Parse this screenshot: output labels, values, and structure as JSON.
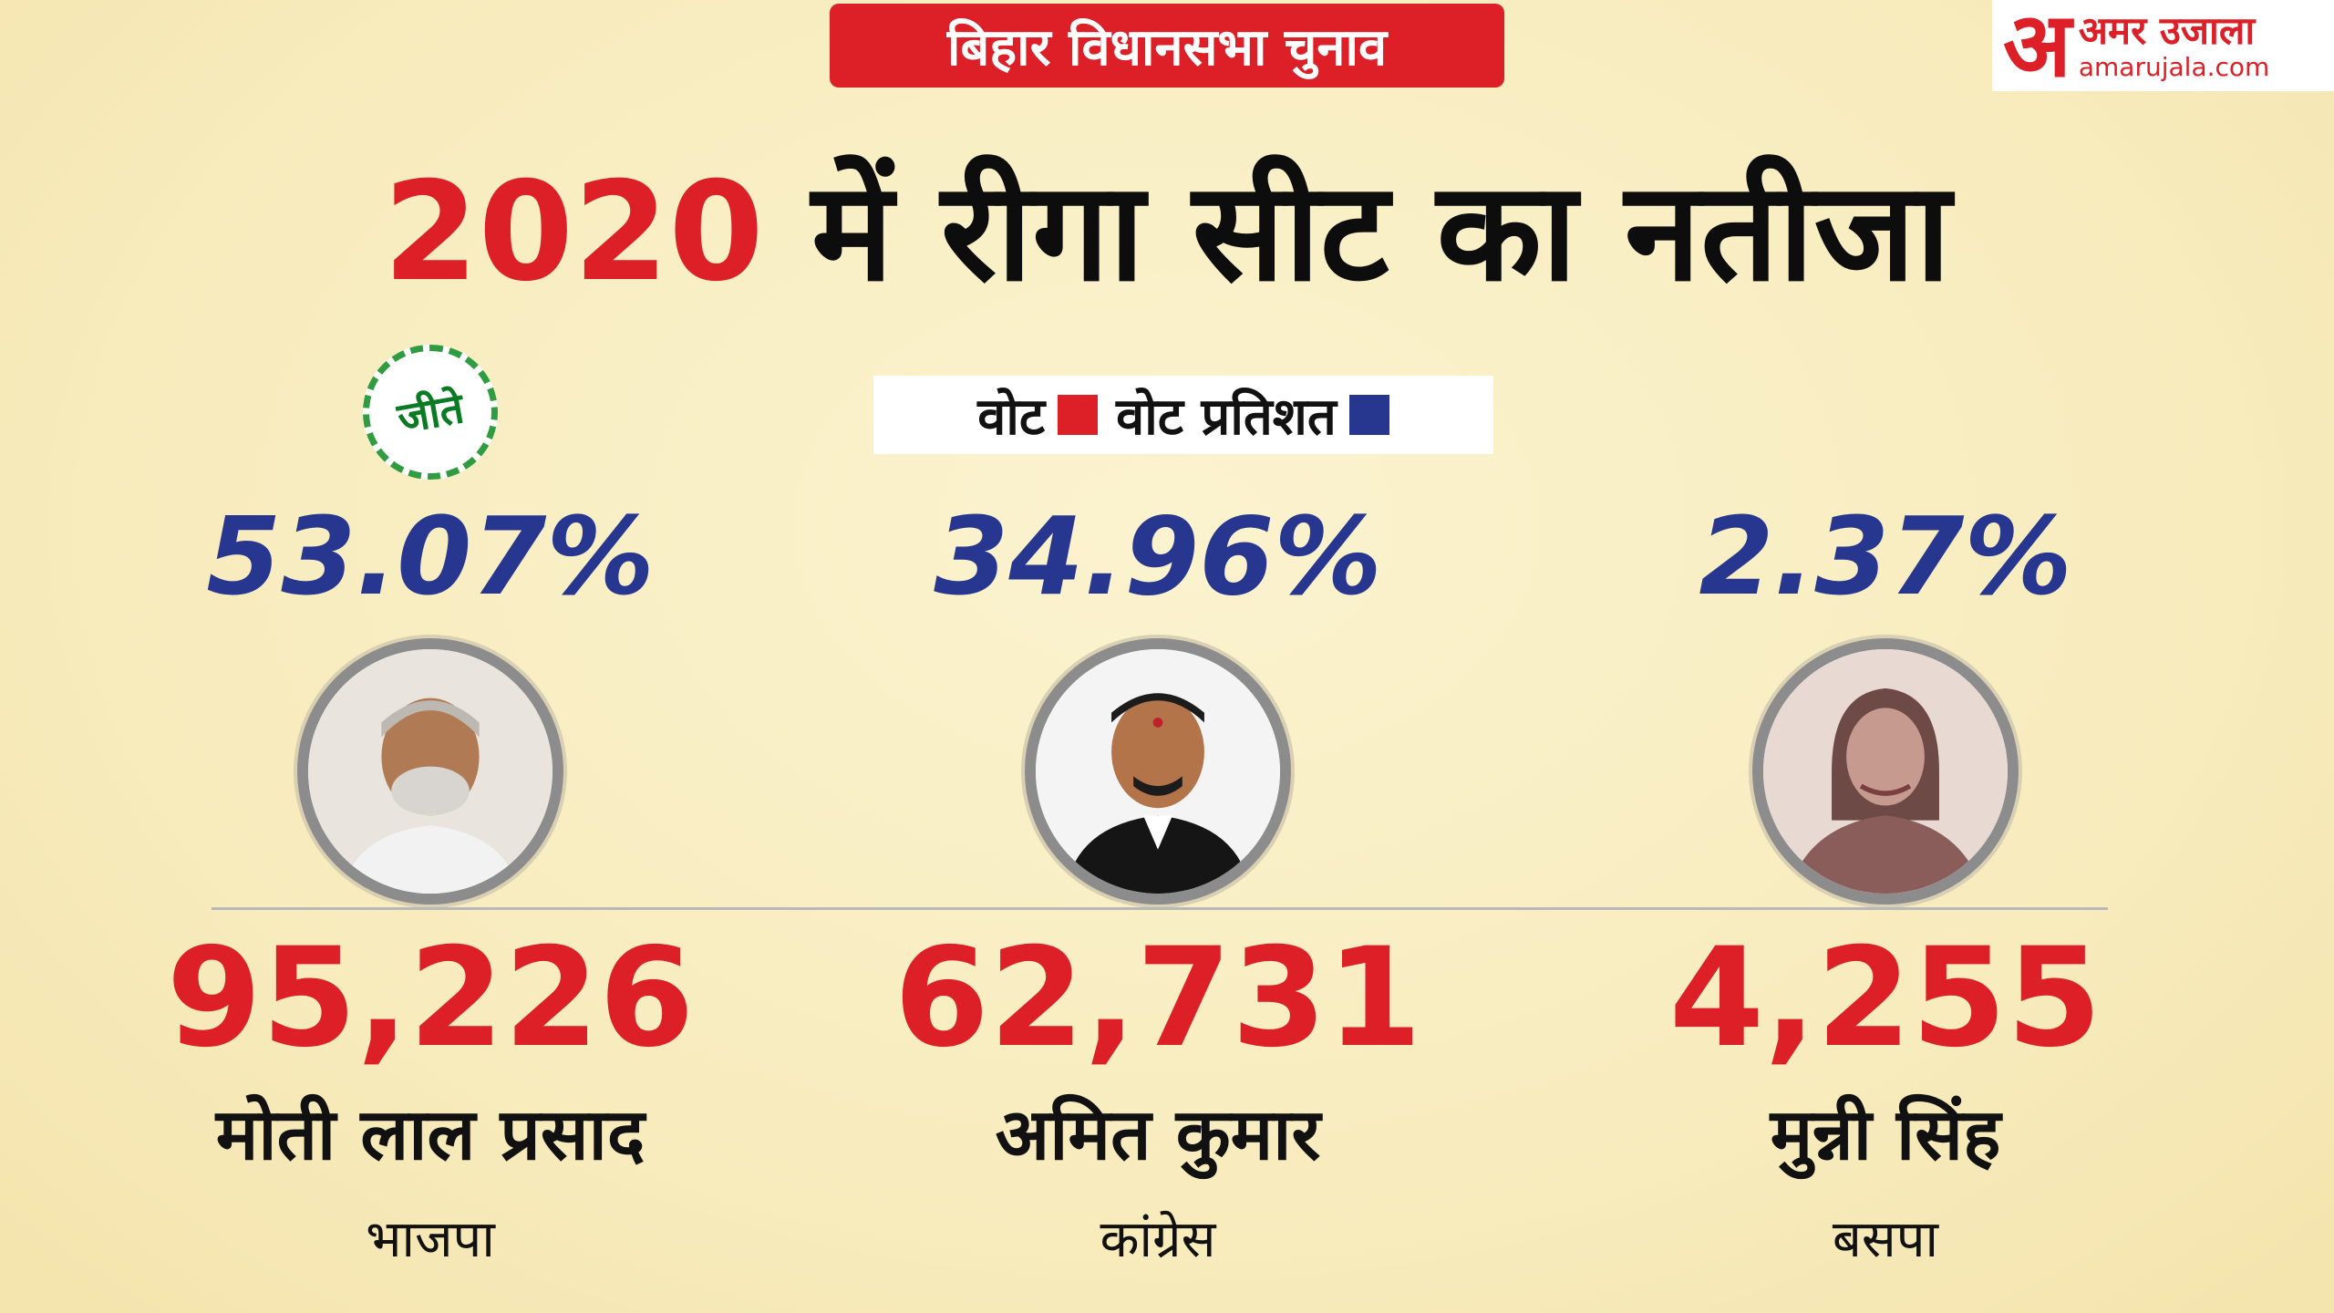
{
  "badge": "बिहार विधानसभा चुनाव",
  "logo": {
    "glyph": "अ",
    "hindi": "अमर उजाला",
    "english": "amarujala.com"
  },
  "title": {
    "year": "2020",
    "rest": " में रीगा सीट का नतीजा"
  },
  "legend": {
    "votes_label": "वोट",
    "percent_label": "वोट प्रतिशत",
    "votes_color": "#dd1f27",
    "percent_color": "#27368f"
  },
  "winner_seal": "जीते",
  "candidates": [
    {
      "percent": "53.07%",
      "votes": "95,226",
      "name": "मोती लाल प्रसाद",
      "party": "भाजपा",
      "winner": true
    },
    {
      "percent": "34.96%",
      "votes": "62,731",
      "name": "अमित कुमार",
      "party": "कांग्रेस",
      "winner": false
    },
    {
      "percent": "2.37%",
      "votes": "4,255",
      "name": "मुन्नी सिंह",
      "party": "बसपा",
      "winner": false
    }
  ]
}
